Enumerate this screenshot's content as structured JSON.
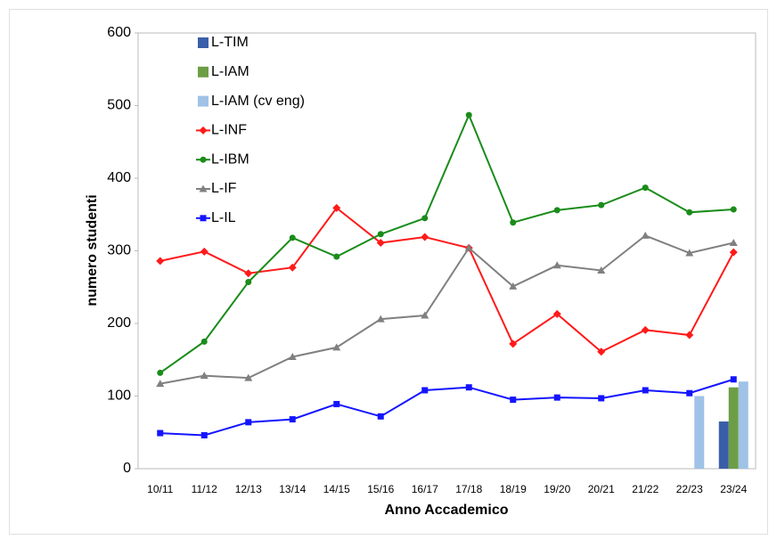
{
  "chart_data": {
    "type": "combo",
    "x_label": "Anno Accademico",
    "y_label": "numero studenti",
    "categories": [
      "10/11",
      "11/12",
      "12/13",
      "13/14",
      "14/15",
      "15/16",
      "16/17",
      "17/18",
      "18/19",
      "19/20",
      "20/21",
      "21/22",
      "22/23",
      "23/24"
    ],
    "ylim": [
      0,
      600
    ],
    "yticks": [
      0,
      100,
      200,
      300,
      400,
      500,
      600
    ],
    "grid": false,
    "legend": "top-left",
    "series": [
      {
        "name": "L-TIM",
        "type": "bar",
        "color": "#3a5fa8",
        "values": [
          null,
          null,
          null,
          null,
          null,
          null,
          null,
          null,
          null,
          null,
          null,
          null,
          null,
          65
        ]
      },
      {
        "name": "L-IAM",
        "type": "bar",
        "color": "#6d9e45",
        "values": [
          null,
          null,
          null,
          null,
          null,
          null,
          null,
          null,
          null,
          null,
          null,
          null,
          null,
          112
        ]
      },
      {
        "name": "L-IAM (cv eng)",
        "type": "bar",
        "color": "#9fc2e6",
        "values": [
          null,
          null,
          null,
          null,
          null,
          null,
          null,
          null,
          null,
          null,
          null,
          null,
          100,
          120
        ]
      },
      {
        "name": "L-INF",
        "type": "line",
        "marker": "diamond",
        "color": "#ff1a1a",
        "values": [
          286,
          299,
          269,
          277,
          359,
          311,
          319,
          304,
          172,
          213,
          161,
          191,
          184,
          298
        ]
      },
      {
        "name": "L-IBM",
        "type": "line",
        "marker": "circle",
        "color": "#1a8c1a",
        "values": [
          132,
          175,
          257,
          318,
          292,
          323,
          345,
          487,
          339,
          356,
          363,
          387,
          353,
          357
        ]
      },
      {
        "name": "L-IF",
        "type": "line",
        "marker": "triangle",
        "color": "#808080",
        "values": [
          117,
          128,
          125,
          154,
          167,
          206,
          211,
          304,
          251,
          280,
          273,
          321,
          297,
          311
        ]
      },
      {
        "name": "L-IL",
        "type": "line",
        "marker": "square",
        "color": "#1414ff",
        "values": [
          49,
          46,
          64,
          68,
          89,
          72,
          108,
          112,
          95,
          98,
          97,
          108,
          104,
          123
        ]
      }
    ]
  }
}
